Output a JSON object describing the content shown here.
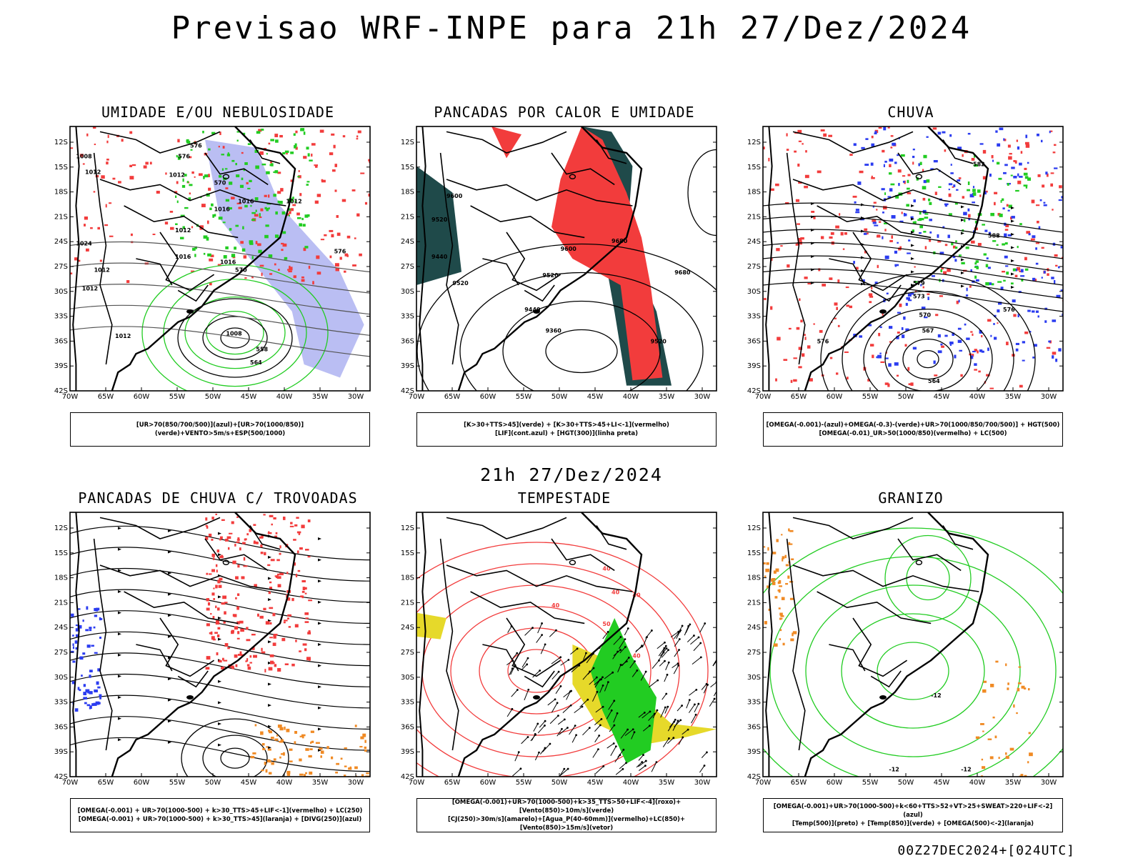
{
  "header": {
    "title": "Previsao WRF-INPE  para 21h 27/Dez/2024"
  },
  "subheader": {
    "title": "21h 27/Dez/2024"
  },
  "footer": {
    "run_label": "00Z27DEC2024+[024UTC]"
  },
  "axes": {
    "lat_labels": [
      "12S",
      "15S",
      "18S",
      "21S",
      "24S",
      "27S",
      "30S",
      "33S",
      "36S",
      "39S",
      "42S"
    ],
    "lon_labels": [
      "70W",
      "65W",
      "60W",
      "55W",
      "50W",
      "45W",
      "40W",
      "35W",
      "30W"
    ]
  },
  "panels": [
    {
      "title": "UMIDADE E/OU NEBULOSIDADE",
      "legend_lines": [
        "[UR>70(850/700/500)](azul)+[UR>70(1000/850)](verde)+VENTO>5m/s+ESP(500/1000)"
      ],
      "contour_labels": [
        "1008",
        "1012",
        "1012",
        "1016",
        "1016",
        "1012",
        "1016",
        "1016",
        "1012",
        "1012",
        "1024",
        "1012",
        "1012",
        "1008",
        "576",
        "570",
        "564",
        "558",
        "576",
        "570",
        "576"
      ]
    },
    {
      "title": "PANCADAS POR CALOR E UMIDADE",
      "legend_lines": [
        "[K>30+TTS>45](verde) + [K>30+TTS>45+LI<-1](vermelho)",
        "[LIF](cont.azul) + [HGT(300)](linha preta)"
      ],
      "contour_labels": [
        "9600",
        "9520",
        "9440",
        "9520",
        "9600",
        "9680",
        "9520",
        "9440",
        "9360",
        "9680",
        "9520"
      ]
    },
    {
      "title": "CHUVA",
      "legend_lines": [
        "[OMEGA(-0.001)-(azul)+OMEGA(-0.3)-(verde)+UR>70(1000/850/700/500)] + HGT(500)",
        "[OMEGA(-0.01)_UR>50(1000/850)(vermelho) + LC(500)"
      ],
      "contour_labels": [
        "576",
        "579",
        "573",
        "570",
        "567",
        "564",
        "582",
        "576",
        "588"
      ]
    },
    {
      "title": "PANCADAS DE CHUVA C/ TROVOADAS",
      "legend_lines": [
        "[OMEGA(-0.001) + UR>70(1000-500) + k>30_TTS>45+LIF<-1](vermelho) + LC(250)",
        "[OMEGA(-0.001) + UR>70(1000-500) + k>30_TTS>45](laranja) + [DIVG(250)](azul)"
      ],
      "contour_labels": []
    },
    {
      "title": "TEMPESTADE",
      "legend_lines": [
        "[OMEGA(-0.001)+UR>70(1000-500)+k>35_TTS>50+LIF<-4](roxo)+[Vento(850)>10m/s](verde)",
        "[CJ(250)>30m/s](amarelo)+[Agua_P(40-60mm)](vermelho)+LC(850)+[Vento(850)>15m/s](vetor)"
      ],
      "contour_labels": [
        "40",
        "40",
        "40",
        "50",
        "40",
        "40"
      ]
    },
    {
      "title": "GRANIZO",
      "legend_lines": [
        "[OMEGA(-0.001)+UR>70(1000-500)+k<60+TTS>52+VT>25+SWEAT>220+LIF<-2](azul)",
        "[Temp(500)](preto) + [Temp(850)](verde) + [OMEGA(500)<-2](laranja)"
      ],
      "contour_labels": [
        "-12",
        "-12",
        "-12"
      ]
    }
  ],
  "colors": {
    "red": "#f23c3c",
    "blue": "#2b3cf0",
    "green": "#22cc22",
    "lightblue": "#9da3ee",
    "darkteal": "#1f4a4a",
    "yellow": "#e6d92a",
    "orange": "#f08a24",
    "black": "#000000"
  }
}
